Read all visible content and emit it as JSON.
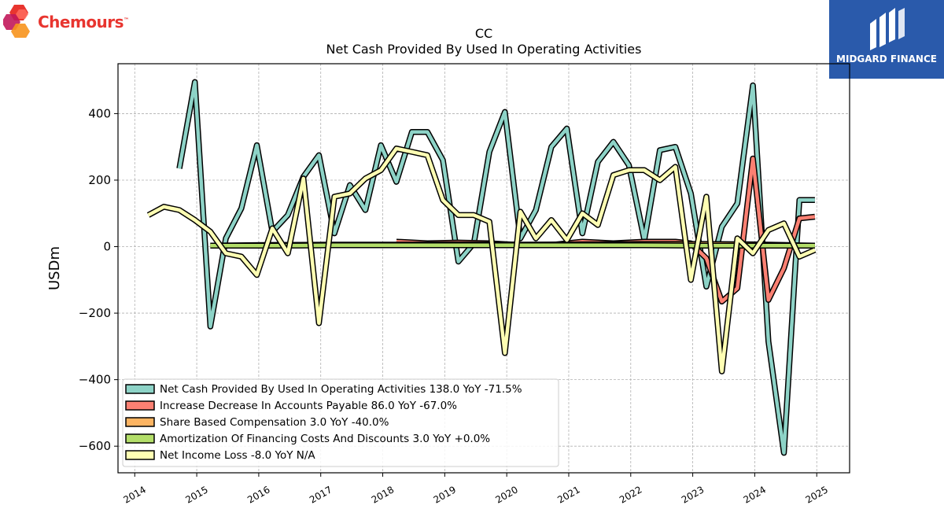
{
  "logos": {
    "left_brand": "Chemours",
    "left_tm": "™",
    "right_brand": "MIDGARD FINANCE"
  },
  "colors": {
    "teal": "#8dd3c7",
    "red": "#fb8072",
    "orange": "#fdb462",
    "green": "#b3de69",
    "yellow": "#ffffb3",
    "outline": "#000000",
    "logo_blue": "#2a5aab",
    "logo_red": "#e8352f"
  },
  "chart_data": {
    "type": "line",
    "title": "CC",
    "subtitle": "Net Cash Provided By Used In Operating Activities",
    "xlabel": "",
    "ylabel": "USDm",
    "xlim": [
      2013.73,
      2025.53
    ],
    "ylim": [
      -680,
      550
    ],
    "x_ticks": [
      "2014",
      "2015",
      "2016",
      "2017",
      "2018",
      "2019",
      "2020",
      "2021",
      "2022",
      "2023",
      "2024",
      "2025"
    ],
    "y_ticks": [
      400,
      200,
      0,
      -200,
      -400,
      -600
    ],
    "y_tick_labels": [
      "400",
      "200",
      "0",
      "−200",
      "−400",
      "−600"
    ],
    "grid": true,
    "legend_position": "lower-left",
    "series": [
      {
        "name": "Net Cash Provided By Used In Operating Activities",
        "legend": "Net Cash Provided By Used In Operating Activities  138.0 YoY -71.5%",
        "color": "#8dd3c7",
        "points": [
          [
            2014.72,
            235
          ],
          [
            2014.97,
            495
          ],
          [
            2015.22,
            -240
          ],
          [
            2015.47,
            25
          ],
          [
            2015.72,
            115
          ],
          [
            2015.97,
            305
          ],
          [
            2016.22,
            45
          ],
          [
            2016.47,
            95
          ],
          [
            2016.72,
            210
          ],
          [
            2016.97,
            275
          ],
          [
            2017.22,
            40
          ],
          [
            2017.47,
            185
          ],
          [
            2017.72,
            110
          ],
          [
            2017.97,
            305
          ],
          [
            2018.22,
            195
          ],
          [
            2018.47,
            345
          ],
          [
            2018.72,
            345
          ],
          [
            2018.97,
            260
          ],
          [
            2019.22,
            -45
          ],
          [
            2019.47,
            10
          ],
          [
            2019.72,
            285
          ],
          [
            2019.97,
            405
          ],
          [
            2020.22,
            25
          ],
          [
            2020.47,
            110
          ],
          [
            2020.72,
            300
          ],
          [
            2020.97,
            355
          ],
          [
            2021.22,
            40
          ],
          [
            2021.47,
            255
          ],
          [
            2021.72,
            315
          ],
          [
            2021.97,
            245
          ],
          [
            2022.22,
            20
          ],
          [
            2022.47,
            290
          ],
          [
            2022.72,
            300
          ],
          [
            2022.97,
            160
          ],
          [
            2023.22,
            -120
          ],
          [
            2023.47,
            60
          ],
          [
            2023.72,
            130
          ],
          [
            2023.97,
            485
          ],
          [
            2024.22,
            -285
          ],
          [
            2024.47,
            -620
          ],
          [
            2024.72,
            140
          ],
          [
            2024.97,
            140
          ]
        ]
      },
      {
        "name": "Increase Decrease In Accounts Payable",
        "legend": "Increase Decrease In Accounts Payable  86.0 YoY -67.0%",
        "color": "#fb8072",
        "points": [
          [
            2018.22,
            15
          ],
          [
            2018.72,
            10
          ],
          [
            2019.22,
            12
          ],
          [
            2019.72,
            10
          ],
          [
            2020.22,
            5
          ],
          [
            2020.72,
            5
          ],
          [
            2021.22,
            15
          ],
          [
            2021.72,
            10
          ],
          [
            2022.22,
            15
          ],
          [
            2022.72,
            15
          ],
          [
            2022.97,
            10
          ],
          [
            2023.22,
            -35
          ],
          [
            2023.47,
            -165
          ],
          [
            2023.72,
            -125
          ],
          [
            2023.97,
            265
          ],
          [
            2024.22,
            -160
          ],
          [
            2024.47,
            -65
          ],
          [
            2024.72,
            85
          ],
          [
            2024.97,
            90
          ]
        ]
      },
      {
        "name": "Share Based Compensation",
        "legend": "Share Based Compensation  3.0 YoY -40.0%",
        "color": "#fdb462",
        "points": [
          [
            2015.22,
            3
          ],
          [
            2016.22,
            5
          ],
          [
            2017.22,
            6
          ],
          [
            2018.22,
            6
          ],
          [
            2019.22,
            7
          ],
          [
            2020.22,
            6
          ],
          [
            2021.22,
            7
          ],
          [
            2022.22,
            8
          ],
          [
            2023.22,
            8
          ],
          [
            2023.97,
            7
          ],
          [
            2024.47,
            5
          ],
          [
            2024.97,
            3
          ]
        ]
      },
      {
        "name": "Amortization Of Financing Costs And Discounts",
        "legend": "Amortization Of Financing Costs And Discounts  3.0 YoY +0.0%",
        "color": "#b3de69",
        "points": [
          [
            2015.22,
            3
          ],
          [
            2016.22,
            3
          ],
          [
            2017.22,
            4
          ],
          [
            2018.22,
            4
          ],
          [
            2019.22,
            4
          ],
          [
            2020.22,
            4
          ],
          [
            2021.22,
            4
          ],
          [
            2022.22,
            4
          ],
          [
            2023.22,
            3
          ],
          [
            2024.22,
            3
          ],
          [
            2024.97,
            3
          ]
        ]
      },
      {
        "name": "Net Income Loss",
        "legend": "Net Income Loss  -8.0 YoY N/A",
        "color": "#ffffb3",
        "points": [
          [
            2014.22,
            95
          ],
          [
            2014.47,
            120
          ],
          [
            2014.72,
            110
          ],
          [
            2014.97,
            80
          ],
          [
            2015.22,
            45
          ],
          [
            2015.47,
            -20
          ],
          [
            2015.72,
            -30
          ],
          [
            2015.97,
            -85
          ],
          [
            2016.22,
            55
          ],
          [
            2016.47,
            -20
          ],
          [
            2016.72,
            205
          ],
          [
            2016.97,
            -230
          ],
          [
            2017.22,
            150
          ],
          [
            2017.47,
            160
          ],
          [
            2017.72,
            205
          ],
          [
            2017.97,
            230
          ],
          [
            2018.22,
            295
          ],
          [
            2018.47,
            285
          ],
          [
            2018.72,
            275
          ],
          [
            2018.97,
            140
          ],
          [
            2019.22,
            95
          ],
          [
            2019.47,
            95
          ],
          [
            2019.72,
            75
          ],
          [
            2019.97,
            -320
          ],
          [
            2020.22,
            105
          ],
          [
            2020.47,
            25
          ],
          [
            2020.72,
            80
          ],
          [
            2020.97,
            20
          ],
          [
            2021.22,
            100
          ],
          [
            2021.47,
            65
          ],
          [
            2021.72,
            215
          ],
          [
            2021.97,
            230
          ],
          [
            2022.22,
            230
          ],
          [
            2022.47,
            200
          ],
          [
            2022.72,
            240
          ],
          [
            2022.97,
            -100
          ],
          [
            2023.22,
            150
          ],
          [
            2023.47,
            -375
          ],
          [
            2023.72,
            25
          ],
          [
            2023.97,
            -20
          ],
          [
            2024.22,
            50
          ],
          [
            2024.47,
            70
          ],
          [
            2024.72,
            -30
          ],
          [
            2024.97,
            -10
          ]
        ]
      }
    ]
  }
}
